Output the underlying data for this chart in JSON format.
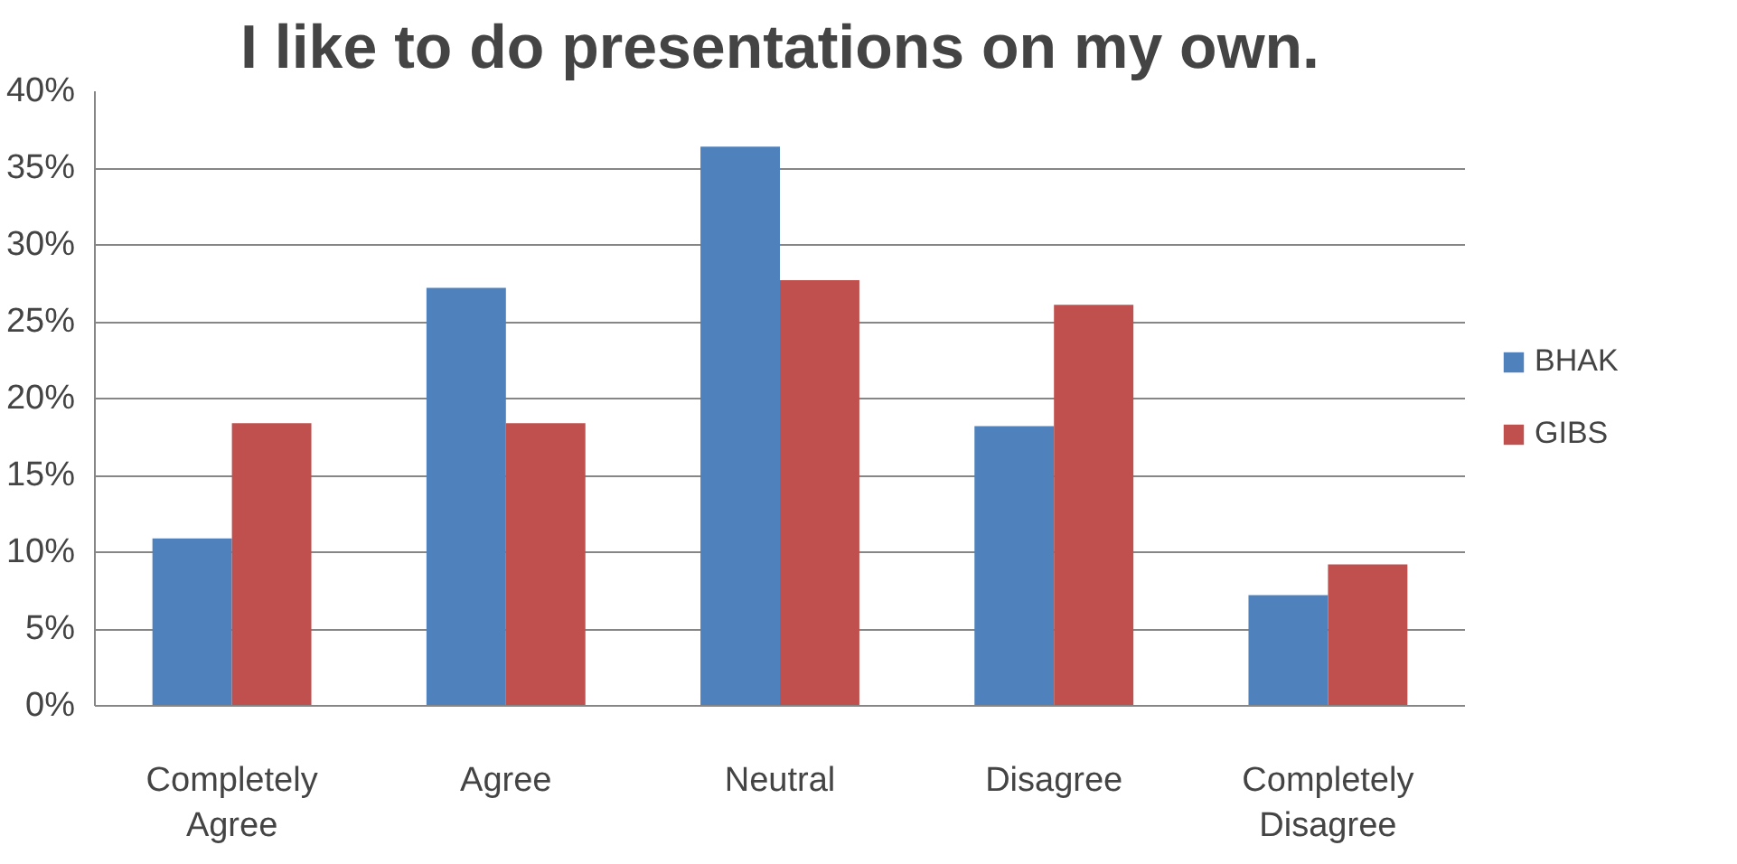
{
  "chart_data": {
    "type": "bar",
    "title": "I like to do presentations on my own.",
    "categories": [
      "Completely Agree",
      "Agree",
      "Neutral",
      "Disagree",
      "Completely Disagree"
    ],
    "series": [
      {
        "name": "BHAK",
        "color": "#4f81bd",
        "values": [
          10.9,
          27.2,
          36.4,
          18.2,
          7.2
        ]
      },
      {
        "name": "GIBS",
        "color": "#c0504d",
        "values": [
          18.4,
          18.4,
          27.7,
          26.1,
          9.2
        ]
      }
    ],
    "ylim": [
      0,
      40
    ],
    "yticks": [
      {
        "value": 0,
        "label": "0%"
      },
      {
        "value": 5,
        "label": "5%"
      },
      {
        "value": 10,
        "label": "10%"
      },
      {
        "value": 15,
        "label": "15%"
      },
      {
        "value": 20,
        "label": "20%"
      },
      {
        "value": 25,
        "label": "25%"
      },
      {
        "value": 30,
        "label": "30%"
      },
      {
        "value": 35,
        "label": "35%"
      },
      {
        "value": 40,
        "label": "40%"
      }
    ],
    "grid": "y",
    "legend": "right"
  }
}
